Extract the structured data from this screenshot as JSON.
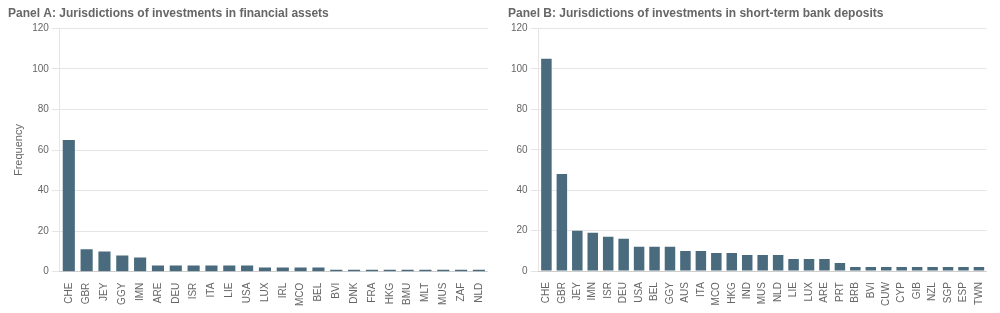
{
  "chart_data": [
    {
      "type": "bar",
      "title": "Panel A: Jurisdictions of investments in financial assets",
      "ylabel": "Frequency",
      "categories": [
        "CHE",
        "GBR",
        "JEY",
        "GGY",
        "IMN",
        "ARE",
        "DEU",
        "ISR",
        "ITA",
        "LIE",
        "USA",
        "LUX",
        "IRL",
        "MCO",
        "BEL",
        "BVI",
        "DNK",
        "FRA",
        "HKG",
        "BMU",
        "MLT",
        "MUS",
        "ZAF",
        "NLD"
      ],
      "values": [
        65,
        11,
        10,
        8,
        7,
        3,
        3,
        3,
        3,
        3,
        3,
        2,
        2,
        2,
        2,
        1,
        1,
        1,
        1,
        1,
        1,
        1,
        1,
        1
      ],
      "color": "#4a6b7e",
      "ylim": [
        0,
        120
      ],
      "yticks": [
        0,
        20,
        40,
        60,
        80,
        100,
        120
      ],
      "grid": true
    },
    {
      "type": "bar",
      "title": "Panel B: Jurisdictions of investments in short-term bank deposits",
      "categories": [
        "CHE",
        "GBR",
        "JEY",
        "IMN",
        "ISR",
        "DEU",
        "USA",
        "BEL",
        "GGY",
        "AUS",
        "ITA",
        "MCO",
        "HKG",
        "IND",
        "MUS",
        "NLD",
        "LIE",
        "LUX",
        "ARE",
        "PRT",
        "BRB",
        "BVI",
        "CUW",
        "CYP",
        "GIB",
        "NZL",
        "SGP",
        "ESP",
        "TWN"
      ],
      "values": [
        105,
        48,
        20,
        19,
        17,
        16,
        12,
        12,
        12,
        10,
        10,
        9,
        9,
        8,
        8,
        8,
        6,
        6,
        6,
        4,
        2,
        2,
        2,
        2,
        2,
        2,
        2,
        2,
        2
      ],
      "color": "#4a6b7e",
      "ylim": [
        0,
        120
      ],
      "yticks": [
        0,
        20,
        40,
        60,
        80,
        100,
        120
      ],
      "grid": true
    }
  ]
}
